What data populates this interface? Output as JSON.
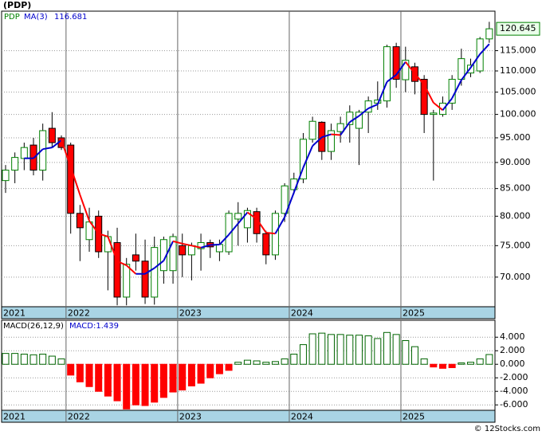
{
  "chart_data": [
    {
      "type": "candlestick",
      "title": "(PDP)",
      "log_scale": true,
      "grid": true,
      "categories": [
        "2021",
        null,
        null,
        null,
        null,
        null,
        null,
        "2022",
        null,
        null,
        null,
        null,
        null,
        null,
        null,
        null,
        null,
        null,
        null,
        "2023",
        null,
        null,
        null,
        null,
        null,
        null,
        null,
        null,
        null,
        null,
        null,
        "2024",
        null,
        null,
        null,
        null,
        null,
        null,
        null,
        null,
        null,
        null,
        null,
        "2025",
        null,
        null,
        null,
        null,
        null,
        null,
        null,
        null,
        null
      ],
      "ylim": [
        65.6,
        125.4
      ],
      "yticks": [
        {
          "value": 70,
          "label": "70.000"
        },
        {
          "value": 75,
          "label": "75.000"
        },
        {
          "value": 80,
          "label": "80.000"
        },
        {
          "value": 85,
          "label": "85.000"
        },
        {
          "value": 90,
          "label": "90.000"
        },
        {
          "value": 95,
          "label": "95.000"
        },
        {
          "value": 100,
          "label": "100.000"
        },
        {
          "value": 105,
          "label": "105.000"
        },
        {
          "value": 110,
          "label": "110.000"
        },
        {
          "value": 115,
          "label": "115.000"
        }
      ],
      "last_price_label": "120.645",
      "series": [
        {
          "name": "PDP",
          "up_color": "#008000",
          "down_color": "#ff0000",
          "open": [
            86.5,
            88.5,
            90.8,
            93.5,
            88.5,
            97,
            95,
            93.5,
            80.5,
            76,
            80,
            74,
            75.5,
            67,
            73.5,
            72.5,
            67,
            71,
            71,
            75,
            73.5,
            74.5,
            75.5,
            74,
            74,
            79.5,
            78,
            80.8,
            77,
            73.5,
            80.5,
            84.8,
            86.8,
            94.7,
            98.3,
            92.2,
            96.3,
            97.8,
            97,
            100.5,
            102.5,
            103,
            116,
            107.9,
            111,
            108,
            100,
            100,
            102.5,
            108,
            109.5,
            110,
            118
          ],
          "high": [
            89.5,
            92,
            94,
            95,
            98,
            100.5,
            95.5,
            94,
            82,
            81.5,
            81,
            77.5,
            78,
            73,
            77,
            76,
            76.5,
            76.5,
            77,
            77,
            75.5,
            77,
            76,
            76,
            81,
            82.5,
            81.5,
            81.5,
            77.5,
            81,
            86,
            88,
            96,
            99.5,
            98.5,
            98,
            99.5,
            102,
            101,
            104,
            107.5,
            116.5,
            117,
            116,
            112,
            109,
            101,
            104,
            109,
            115.5,
            113,
            118.5,
            122.5
          ],
          "low": [
            84.2,
            86,
            88.5,
            87.5,
            86.5,
            93,
            92.5,
            77,
            72.5,
            74,
            73,
            68,
            65.8,
            65.8,
            71,
            66,
            65.9,
            69,
            69,
            70,
            69.5,
            71,
            73,
            72.5,
            73.5,
            75,
            75.5,
            75.5,
            72,
            72.7,
            79,
            84,
            86,
            94,
            90.5,
            90.5,
            94,
            94,
            89.5,
            96,
            101,
            101.5,
            106,
            105,
            104.5,
            96,
            86.5,
            99.5,
            101,
            106.5,
            108.5,
            109.5,
            117
          ],
          "close": [
            88.5,
            91,
            93,
            88.5,
            96.5,
            94,
            93,
            80.5,
            78,
            79,
            74,
            76.5,
            67,
            72,
            72.5,
            67,
            74.7,
            76,
            76.5,
            73.5,
            75,
            75.5,
            74.8,
            75.2,
            80.5,
            80.5,
            81,
            77,
            73.5,
            80.5,
            85.5,
            86.8,
            94.7,
            98.5,
            92.2,
            96.5,
            98,
            100.5,
            100.5,
            103,
            103.2,
            116,
            108,
            112.6,
            107.5,
            100,
            100.3,
            102.5,
            108,
            113,
            111.4,
            118,
            120.645
          ]
        },
        {
          "name": "MA(3)",
          "color": "#0000cc",
          "down_color": "#ff0000",
          "last_label": "116.681",
          "values": [
            null,
            null,
            90.83,
            90.83,
            92.67,
            93,
            94.5,
            89.17,
            83.83,
            79.17,
            77,
            76.5,
            72.5,
            71.83,
            70.5,
            70.5,
            71.4,
            72.57,
            75.73,
            75.33,
            75,
            74.67,
            75.1,
            75.17,
            76.83,
            78.73,
            80.67,
            79.5,
            77.17,
            77,
            79.83,
            84.27,
            89,
            93.33,
            95.13,
            95.73,
            95.57,
            98.33,
            99.67,
            101.33,
            102.23,
            107.4,
            109.07,
            112.2,
            109.37,
            106.7,
            102.6,
            100.93,
            103.6,
            107.83,
            110.8,
            114.13,
            116.681
          ]
        }
      ]
    },
    {
      "type": "macd",
      "title": "MACD(26,12,9)",
      "grid": true,
      "categories": [
        "2021",
        null,
        null,
        null,
        null,
        null,
        null,
        "2022",
        null,
        null,
        null,
        null,
        null,
        null,
        null,
        null,
        null,
        null,
        null,
        "2023",
        null,
        null,
        null,
        null,
        null,
        null,
        null,
        null,
        null,
        null,
        null,
        "2024",
        null,
        null,
        null,
        null,
        null,
        null,
        null,
        null,
        null,
        null,
        null,
        "2025",
        null,
        null,
        null,
        null,
        null,
        null,
        null,
        null,
        null
      ],
      "ylim": [
        -6.8,
        6.5
      ],
      "yticks": [
        {
          "value": 4,
          "label": "4.000"
        },
        {
          "value": 2,
          "label": "2.000"
        },
        {
          "value": 0,
          "label": "0.000"
        },
        {
          "value": -2,
          "label": "-2.000"
        },
        {
          "value": -4,
          "label": "-4.000"
        },
        {
          "value": -6,
          "label": "-6.000"
        }
      ],
      "series": [
        {
          "label": "MACD:1.439",
          "label_color": "#0000cc",
          "up_color": "#006400",
          "down_color": "#ff0000",
          "values": [
            1.6,
            1.6,
            1.5,
            1.4,
            1.5,
            1.2,
            0.8,
            -1.6,
            -2.6,
            -3.3,
            -4,
            -4.7,
            -5.4,
            -6.6,
            -6,
            -6.1,
            -5.6,
            -4.9,
            -4.1,
            -3.8,
            -3.2,
            -2.8,
            -2,
            -1.4,
            -0.9,
            0.3,
            0.6,
            0.5,
            0.3,
            0.4,
            0.8,
            1.5,
            2.9,
            4.5,
            4.6,
            4.4,
            4.4,
            4.3,
            4.3,
            4.2,
            3.8,
            4.7,
            4.4,
            3.5,
            2.6,
            0.8,
            -0.4,
            -0.6,
            -0.5,
            0.2,
            0.3,
            0.8,
            1.439
          ]
        }
      ]
    }
  ],
  "footer": "© 12Stocks.com"
}
